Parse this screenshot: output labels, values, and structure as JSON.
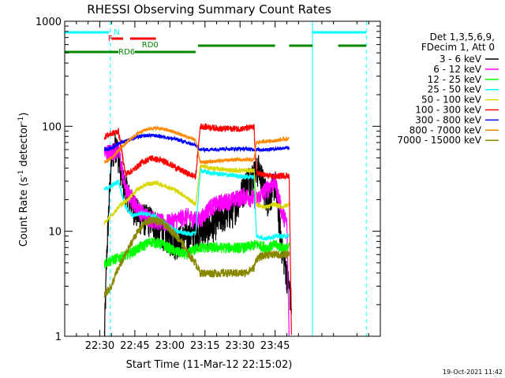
{
  "chart_data": {
    "type": "line",
    "title": "RHESSI Observing Summary Count Rates",
    "xlabel": "Start Time (11-Mar-12 22:15:02)",
    "ylabel_main": "Count Rate (s",
    "ylabel_sup1": "-1",
    "ylabel_mid": " detector",
    "ylabel_sup2": "-1",
    "ylabel_end": ")",
    "yscale": "log",
    "ylim": [
      1,
      1000
    ],
    "xlim_min": [
      0,
      135
    ],
    "xticks": [
      {
        "m": 15,
        "label": "22:30"
      },
      {
        "m": 30,
        "label": "22:45"
      },
      {
        "m": 45,
        "label": "23:00"
      },
      {
        "m": 60,
        "label": "23:15"
      },
      {
        "m": 75,
        "label": "23:30"
      },
      {
        "m": 90,
        "label": "23:45"
      }
    ],
    "yticks": [
      {
        "v": 1,
        "label": "1"
      },
      {
        "v": 10,
        "label": "10"
      },
      {
        "v": 100,
        "label": "100"
      },
      {
        "v": 1000,
        "label": "1000"
      }
    ],
    "legend": {
      "header": [
        "Det 1,3,5,6,9,",
        "FDecim 1, Att 0"
      ],
      "placement": "right",
      "entries": [
        {
          "name": "3 - 6 keV",
          "color": "#000000"
        },
        {
          "name": "6 - 12 keV",
          "color": "#ff00ff"
        },
        {
          "name": "12 - 25 keV",
          "color": "#00ff00"
        },
        {
          "name": "25 - 50 keV",
          "color": "#00ffff"
        },
        {
          "name": "50 - 100 keV",
          "color": "#d8d800"
        },
        {
          "name": "100 - 300 keV",
          "color": "#ff0000"
        },
        {
          "name": "300 - 800 keV",
          "color": "#0000ff"
        },
        {
          "name": "800 - 7000 keV",
          "color": "#ff8800"
        },
        {
          "name": "7000 - 15000 keV",
          "color": "#888800"
        }
      ]
    },
    "flags": [
      {
        "label": "N",
        "color": "#00ffff",
        "segments": [
          [
            0,
            19
          ],
          [
            106,
            129
          ]
        ],
        "level": 0
      },
      {
        "label": "F",
        "color": "#ff0000",
        "segments": [
          [
            20,
            25
          ],
          [
            28,
            39
          ]
        ],
        "level": 1
      },
      {
        "label": "RD6",
        "color": "#008800",
        "segments": [
          [
            0,
            23
          ],
          [
            30,
            56
          ]
        ],
        "level": 3
      },
      {
        "label": "RD0",
        "color": "#008800",
        "segments": [
          [
            57,
            90
          ],
          [
            96,
            106
          ],
          [
            117,
            129
          ]
        ],
        "level": 2
      }
    ],
    "vlines": [
      {
        "m": 19.5,
        "color": "#00ffff",
        "dash": true
      },
      {
        "m": 106,
        "color": "#00ffff",
        "dash": false
      },
      {
        "m": 129,
        "color": "#00ffff",
        "dash": true
      }
    ],
    "series": [
      {
        "name": "3 - 6 keV",
        "color": "#000000",
        "noise": 0.35,
        "pts": [
          [
            17,
            1
          ],
          [
            18,
            6
          ],
          [
            19,
            20
          ],
          [
            20,
            50
          ],
          [
            22,
            70
          ],
          [
            25,
            30
          ],
          [
            28,
            20
          ],
          [
            32,
            14
          ],
          [
            37,
            13
          ],
          [
            42,
            10
          ],
          [
            47,
            8
          ],
          [
            52,
            9
          ],
          [
            57,
            10
          ],
          [
            62,
            11
          ],
          [
            67,
            14
          ],
          [
            72,
            16
          ],
          [
            78,
            30
          ],
          [
            83,
            40
          ],
          [
            87,
            20
          ],
          [
            90,
            30
          ],
          [
            93,
            7
          ],
          [
            96,
            3
          ],
          [
            97,
            2
          ]
        ]
      },
      {
        "name": "6 - 12 keV",
        "color": "#ff00ff",
        "noise": 0.2,
        "pts": [
          [
            17,
            55
          ],
          [
            20,
            58
          ],
          [
            23,
            60
          ],
          [
            26,
            25
          ],
          [
            29,
            20
          ],
          [
            33,
            15
          ],
          [
            38,
            13
          ],
          [
            43,
            12
          ],
          [
            48,
            13
          ],
          [
            52,
            14
          ],
          [
            56,
            13
          ],
          [
            58,
            13
          ],
          [
            62,
            17
          ],
          [
            67,
            19
          ],
          [
            72,
            20
          ],
          [
            77,
            22
          ],
          [
            82,
            20
          ],
          [
            86,
            25
          ],
          [
            90,
            30
          ],
          [
            93,
            15
          ],
          [
            95,
            12
          ],
          [
            96,
            1
          ]
        ]
      },
      {
        "name": "12 - 25 keV",
        "color": "#00ff00",
        "noise": 0.12,
        "pts": [
          [
            17,
            5
          ],
          [
            22,
            5.5
          ],
          [
            27,
            6
          ],
          [
            32,
            7
          ],
          [
            37,
            8
          ],
          [
            42,
            7.5
          ],
          [
            47,
            6.5
          ],
          [
            52,
            6
          ],
          [
            57,
            7
          ],
          [
            62,
            7
          ],
          [
            67,
            7
          ],
          [
            72,
            7
          ],
          [
            77,
            7
          ],
          [
            82,
            7.5
          ],
          [
            87,
            7
          ],
          [
            90,
            7.5
          ],
          [
            93,
            7
          ],
          [
            96,
            7
          ]
        ]
      },
      {
        "name": "25 - 50 keV",
        "color": "#00ffff",
        "noise": 0.05,
        "pts": [
          [
            17,
            25
          ],
          [
            20,
            27
          ],
          [
            23,
            30
          ],
          [
            26,
            17
          ],
          [
            29,
            14
          ],
          [
            33,
            15
          ],
          [
            38,
            14
          ],
          [
            43,
            12
          ],
          [
            48,
            10
          ],
          [
            52,
            9.5
          ],
          [
            56,
            9.5
          ],
          [
            58,
            38
          ],
          [
            62,
            36
          ],
          [
            67,
            35
          ],
          [
            72,
            34
          ],
          [
            77,
            33
          ],
          [
            81,
            33
          ],
          [
            82,
            9
          ],
          [
            86,
            8.5
          ],
          [
            90,
            9
          ],
          [
            93,
            9
          ],
          [
            96,
            9
          ]
        ]
      },
      {
        "name": "50 - 100 keV",
        "color": "#d8d800",
        "noise": 0.05,
        "pts": [
          [
            17,
            12
          ],
          [
            20,
            14
          ],
          [
            23,
            17
          ],
          [
            27,
            20
          ],
          [
            31,
            25
          ],
          [
            35,
            28
          ],
          [
            39,
            29
          ],
          [
            43,
            27
          ],
          [
            47,
            25
          ],
          [
            51,
            22
          ],
          [
            56,
            18
          ],
          [
            58,
            42
          ],
          [
            62,
            40
          ],
          [
            67,
            39
          ],
          [
            72,
            38
          ],
          [
            77,
            38
          ],
          [
            81,
            38
          ],
          [
            82,
            18
          ],
          [
            86,
            17
          ],
          [
            90,
            18
          ],
          [
            93,
            17
          ],
          [
            96,
            18
          ]
        ]
      },
      {
        "name": "100 - 300 keV",
        "color": "#ff0000",
        "noise": 0.07,
        "pts": [
          [
            17,
            80
          ],
          [
            20,
            85
          ],
          [
            23,
            90
          ],
          [
            26,
            35
          ],
          [
            29,
            38
          ],
          [
            33,
            45
          ],
          [
            37,
            50
          ],
          [
            40,
            48
          ],
          [
            44,
            45
          ],
          [
            48,
            40
          ],
          [
            52,
            36
          ],
          [
            56,
            33
          ],
          [
            58,
            100
          ],
          [
            62,
            98
          ],
          [
            67,
            95
          ],
          [
            72,
            95
          ],
          [
            77,
            95
          ],
          [
            81,
            98
          ],
          [
            82,
            36
          ],
          [
            86,
            34
          ],
          [
            90,
            33
          ],
          [
            93,
            34
          ],
          [
            96,
            34
          ],
          [
            97,
            1
          ]
        ]
      },
      {
        "name": "300 - 800 keV",
        "color": "#0000ff",
        "noise": 0.04,
        "pts": [
          [
            17,
            60
          ],
          [
            20,
            62
          ],
          [
            24,
            70
          ],
          [
            28,
            75
          ],
          [
            32,
            80
          ],
          [
            36,
            82
          ],
          [
            40,
            81
          ],
          [
            44,
            78
          ],
          [
            48,
            75
          ],
          [
            52,
            70
          ],
          [
            56,
            66
          ],
          [
            58,
            60
          ],
          [
            62,
            60
          ],
          [
            67,
            61
          ],
          [
            72,
            61
          ],
          [
            77,
            61
          ],
          [
            81,
            60
          ],
          [
            82,
            60
          ],
          [
            86,
            60
          ],
          [
            90,
            61
          ],
          [
            93,
            62
          ],
          [
            96,
            62
          ]
        ]
      },
      {
        "name": "800 - 7000 keV",
        "color": "#ff8800",
        "noise": 0.04,
        "pts": [
          [
            17,
            45
          ],
          [
            20,
            50
          ],
          [
            24,
            62
          ],
          [
            28,
            75
          ],
          [
            32,
            88
          ],
          [
            36,
            95
          ],
          [
            40,
            96
          ],
          [
            44,
            92
          ],
          [
            48,
            86
          ],
          [
            52,
            80
          ],
          [
            56,
            74
          ],
          [
            58,
            45
          ],
          [
            62,
            46
          ],
          [
            67,
            47
          ],
          [
            72,
            48
          ],
          [
            77,
            48
          ],
          [
            81,
            48
          ],
          [
            82,
            70
          ],
          [
            86,
            72
          ],
          [
            90,
            73
          ],
          [
            93,
            75
          ],
          [
            96,
            76
          ]
        ]
      },
      {
        "name": "7000 - 15000 keV",
        "color": "#888800",
        "noise": 0.09,
        "pts": [
          [
            17,
            2.5
          ],
          [
            20,
            3
          ],
          [
            22,
            4
          ],
          [
            26,
            6
          ],
          [
            30,
            9
          ],
          [
            34,
            12
          ],
          [
            38,
            13
          ],
          [
            42,
            12
          ],
          [
            46,
            10
          ],
          [
            50,
            8
          ],
          [
            53,
            6
          ],
          [
            56,
            5
          ],
          [
            58,
            4
          ],
          [
            62,
            4
          ],
          [
            67,
            4
          ],
          [
            72,
            4
          ],
          [
            77,
            4
          ],
          [
            81,
            4.5
          ],
          [
            82,
            5.5
          ],
          [
            86,
            6
          ],
          [
            90,
            6
          ],
          [
            93,
            6
          ],
          [
            96,
            6
          ]
        ]
      }
    ]
  },
  "footer": {
    "timestamp": "19-Oct-2021 11:42"
  }
}
